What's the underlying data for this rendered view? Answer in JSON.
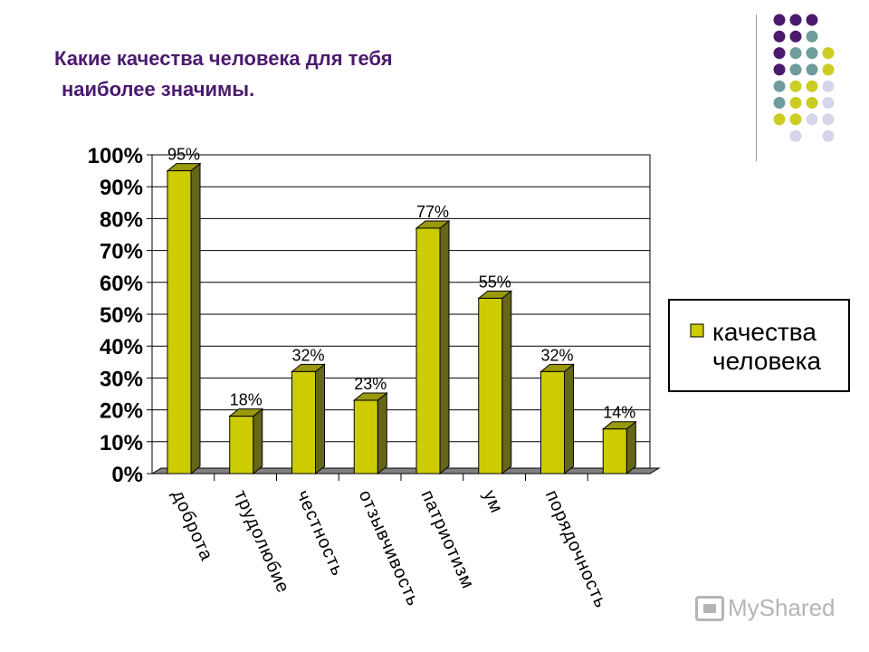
{
  "slide": {
    "title_line1": "Какие качества человека для тебя",
    "title_line2": "наиболее значимы."
  },
  "watermark": {
    "text": "MyShared"
  },
  "colors": {
    "bar_front": "#cccc00",
    "bar_side": "#66661a",
    "bar_top": "#99990d",
    "title": "#4b1a6e",
    "dot_purple": "#4b1a6e",
    "dot_teal": "#6f9c9c",
    "dot_yellow": "#cccc22",
    "dot_lavender": "#d6d6ea"
  },
  "chart_data": {
    "type": "bar",
    "title": "",
    "xlabel": "",
    "ylabel": "",
    "categories": [
      "доброта",
      "трудолюбие",
      "честность",
      "отзывчивость",
      "патриотизм",
      "ум",
      "порядочность",
      ""
    ],
    "series": [
      {
        "name": "качества человека",
        "values": [
          95,
          18,
          32,
          23,
          77,
          55,
          32,
          14
        ]
      }
    ],
    "data_labels": [
      "95%",
      "18%",
      "32%",
      "23%",
      "77%",
      "55%",
      "32%",
      "14%"
    ],
    "ylim": [
      0,
      100
    ],
    "yticks": [
      "0%",
      "10%",
      "20%",
      "30%",
      "40%",
      "50%",
      "60%",
      "70%",
      "80%",
      "90%",
      "100%"
    ],
    "grid": true,
    "legend": "right",
    "style": "3d-bars"
  }
}
